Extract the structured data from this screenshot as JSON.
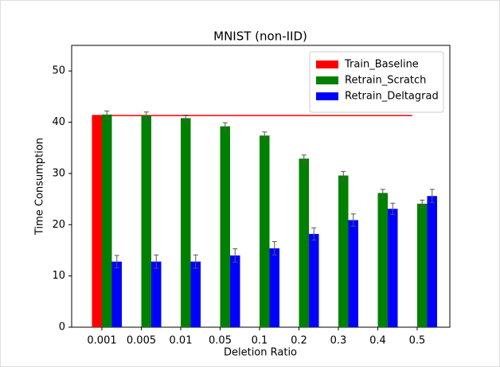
{
  "chart_data": {
    "type": "bar",
    "title": "MNIST (non-IID)",
    "x_label": "Deletion Ratio",
    "y_label": "Time Consumption",
    "categories": [
      "0.001",
      "0.005",
      "0.01",
      "0.05",
      "0.1",
      "0.2",
      "0.3",
      "0.4",
      "0.5"
    ],
    "series": [
      {
        "name": "Train_Baseline",
        "color": "#ff0000",
        "values": [
          41.3,
          null,
          null,
          null,
          null,
          null,
          null,
          null,
          null
        ]
      },
      {
        "name": "Retrain_Scratch",
        "color": "#008000",
        "values": [
          41.5,
          41.3,
          40.8,
          39.2,
          37.4,
          32.9,
          29.6,
          26.2,
          24.1
        ],
        "errors": [
          0.7,
          0.7,
          0.6,
          0.7,
          0.7,
          0.7,
          0.8,
          0.7,
          0.7
        ]
      },
      {
        "name": "Retrain_Deltagrad",
        "color": "#0000ff",
        "values": [
          12.8,
          12.8,
          12.8,
          14.0,
          15.4,
          18.2,
          20.9,
          23.1,
          25.6
        ],
        "errors": [
          1.2,
          1.3,
          1.3,
          1.3,
          1.3,
          1.2,
          1.2,
          1.1,
          1.3
        ]
      }
    ],
    "ylim": [
      0,
      55
    ],
    "yticks": [
      0,
      10,
      20,
      30,
      40,
      50
    ],
    "legend": "upper right"
  }
}
